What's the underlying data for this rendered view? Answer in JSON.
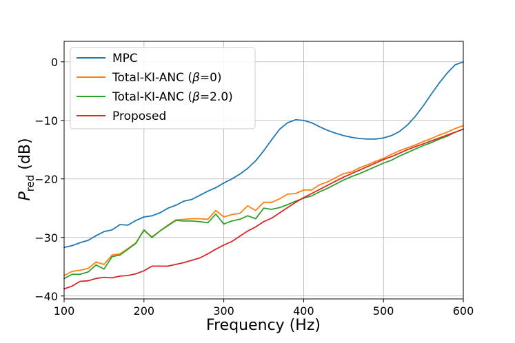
{
  "chart_data": {
    "type": "line",
    "title": "",
    "xlabel": "Frequency (Hz)",
    "ylabel_main": "P",
    "ylabel_sub": "red",
    "ylabel_unit": " (dB)",
    "xlim": [
      100,
      600
    ],
    "ylim": [
      -40.5,
      3.5
    ],
    "xticks": [
      100,
      200,
      300,
      400,
      500,
      600
    ],
    "yticks": [
      0,
      -10,
      -20,
      -30,
      -40
    ],
    "ytick_labels": [
      "0",
      "−10",
      "−20",
      "−30",
      "−40"
    ],
    "grid": true,
    "legend_position": "top-left",
    "x": [
      100,
      110,
      120,
      130,
      140,
      150,
      160,
      170,
      180,
      190,
      200,
      210,
      220,
      230,
      240,
      250,
      260,
      270,
      280,
      290,
      300,
      310,
      320,
      330,
      340,
      350,
      360,
      370,
      380,
      390,
      400,
      410,
      420,
      430,
      440,
      450,
      460,
      470,
      480,
      490,
      500,
      510,
      520,
      530,
      540,
      550,
      560,
      570,
      580,
      590,
      600
    ],
    "series": [
      {
        "name": "MPC",
        "color": "#1f77b4",
        "values": [
          -31.7,
          -31.4,
          -30.9,
          -30.5,
          -29.7,
          -29.0,
          -28.7,
          -27.8,
          -27.9,
          -27.1,
          -26.5,
          -26.3,
          -25.8,
          -25.0,
          -24.5,
          -23.8,
          -23.5,
          -22.8,
          -22.1,
          -21.5,
          -20.7,
          -20.0,
          -19.2,
          -18.2,
          -16.9,
          -15.2,
          -13.3,
          -11.5,
          -10.4,
          -9.9,
          -10.0,
          -10.4,
          -11.1,
          -11.7,
          -12.2,
          -12.6,
          -12.9,
          -13.1,
          -13.2,
          -13.2,
          -13.0,
          -12.6,
          -11.9,
          -10.8,
          -9.3,
          -7.5,
          -5.5,
          -3.6,
          -1.9,
          -0.5,
          0.0
        ]
      },
      {
        "name": "Total-KI-ANC (β=0)",
        "label_pre": "Total-KI-ANC (",
        "label_sym": "β",
        "label_post": "=0)",
        "color": "#ff7f0e",
        "values": [
          -36.5,
          -35.8,
          -35.6,
          -35.3,
          -34.2,
          -34.6,
          -33.0,
          -32.8,
          -31.9,
          -30.9,
          -28.8,
          -29.9,
          -28.9,
          -27.9,
          -27.0,
          -26.9,
          -26.8,
          -26.8,
          -26.9,
          -25.4,
          -26.5,
          -26.1,
          -25.9,
          -24.6,
          -25.4,
          -24.0,
          -24.0,
          -23.4,
          -22.6,
          -22.5,
          -21.9,
          -21.9,
          -21.0,
          -20.5,
          -19.8,
          -19.1,
          -18.8,
          -18.1,
          -17.6,
          -17.0,
          -16.5,
          -15.8,
          -15.2,
          -14.7,
          -14.2,
          -13.6,
          -13.1,
          -12.5,
          -12.0,
          -11.4,
          -10.9
        ]
      },
      {
        "name": "Total-KI-ANC (β=2.0)",
        "label_pre": "Total-KI-ANC (",
        "label_sym": "β",
        "label_post": "=2.0)",
        "color": "#2ca02c",
        "values": [
          -37.0,
          -36.3,
          -36.3,
          -35.9,
          -34.7,
          -35.4,
          -33.3,
          -33.0,
          -32.0,
          -31.0,
          -28.7,
          -30.0,
          -28.9,
          -28.0,
          -27.1,
          -27.2,
          -27.2,
          -27.3,
          -27.5,
          -26.0,
          -27.7,
          -27.2,
          -26.9,
          -26.3,
          -26.8,
          -25.0,
          -25.2,
          -24.9,
          -24.4,
          -23.8,
          -23.3,
          -22.9,
          -22.2,
          -21.6,
          -20.9,
          -20.2,
          -19.6,
          -19.1,
          -18.5,
          -17.9,
          -17.3,
          -16.8,
          -16.1,
          -15.5,
          -14.9,
          -14.3,
          -13.8,
          -13.2,
          -12.7,
          -12.0,
          -11.5
        ]
      },
      {
        "name": "Proposed",
        "color": "#d62728",
        "values": [
          -38.8,
          -38.3,
          -37.5,
          -37.4,
          -37.0,
          -36.8,
          -36.9,
          -36.6,
          -36.5,
          -36.2,
          -35.7,
          -34.9,
          -34.9,
          -34.9,
          -34.6,
          -34.3,
          -33.9,
          -33.5,
          -32.8,
          -32.0,
          -31.3,
          -30.7,
          -29.8,
          -28.9,
          -28.2,
          -27.3,
          -26.7,
          -25.8,
          -24.9,
          -24.0,
          -23.2,
          -22.5,
          -21.8,
          -21.1,
          -20.4,
          -19.7,
          -19.1,
          -18.5,
          -17.9,
          -17.3,
          -16.7,
          -16.2,
          -15.6,
          -15.0,
          -14.5,
          -14.0,
          -13.5,
          -13.0,
          -12.5,
          -12.0,
          -11.5
        ]
      }
    ]
  }
}
